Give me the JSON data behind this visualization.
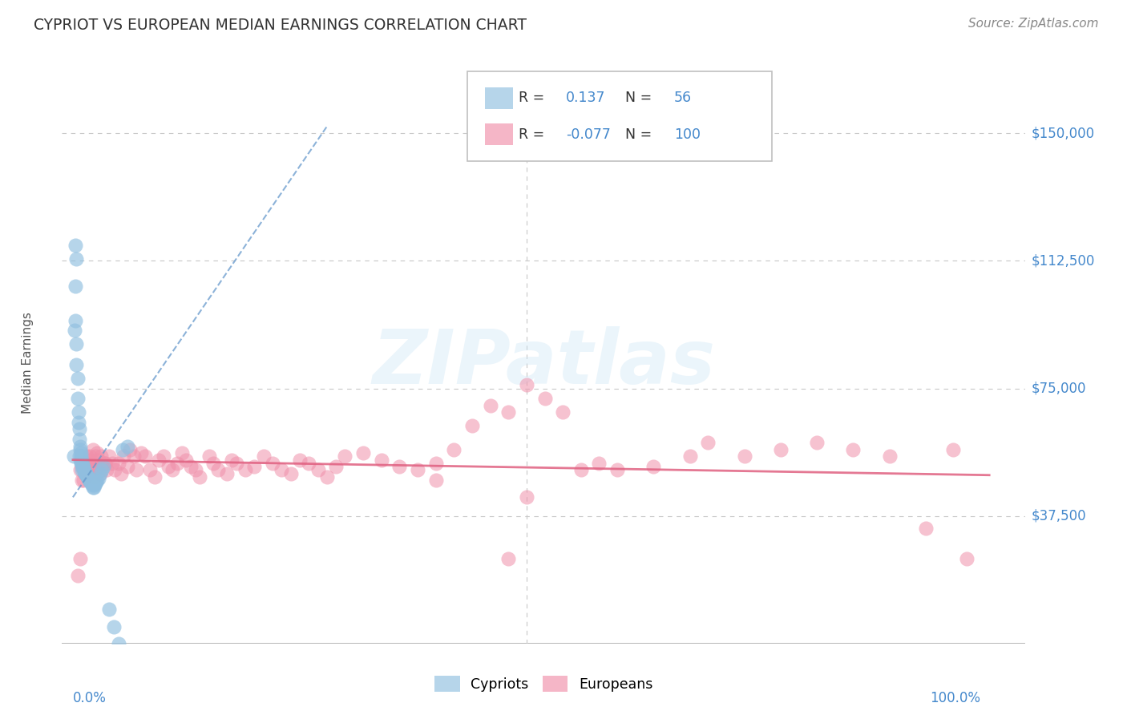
{
  "title": "CYPRIOT VS EUROPEAN MEDIAN EARNINGS CORRELATION CHART",
  "source": "Source: ZipAtlas.com",
  "ylabel": "Median Earnings",
  "cypriot_R": 0.137,
  "cypriot_N": 56,
  "european_R": -0.077,
  "european_N": 100,
  "ytick_labels": [
    "$37,500",
    "$75,000",
    "$112,500",
    "$150,000"
  ],
  "ytick_values": [
    37500,
    75000,
    112500,
    150000
  ],
  "ymin": 0,
  "ymax": 165000,
  "xmin": -0.012,
  "xmax": 1.05,
  "background_color": "#ffffff",
  "grid_color": "#c8c8c8",
  "cypriot_color": "#90bfe0",
  "cypriot_line_color": "#6699cc",
  "european_color": "#f090aa",
  "european_line_color": "#e06080",
  "watermark_text": "ZIPatlas",
  "title_color": "#333333",
  "axis_label_color": "#4488cc",
  "source_color": "#888888",
  "cypriot_x": [
    0.001,
    0.002,
    0.003,
    0.003,
    0.004,
    0.004,
    0.005,
    0.005,
    0.006,
    0.006,
    0.007,
    0.007,
    0.008,
    0.008,
    0.009,
    0.009,
    0.01,
    0.01,
    0.011,
    0.011,
    0.012,
    0.012,
    0.013,
    0.013,
    0.014,
    0.015,
    0.016,
    0.017,
    0.018,
    0.019,
    0.02,
    0.021,
    0.022,
    0.023,
    0.024,
    0.025,
    0.026,
    0.027,
    0.028,
    0.03,
    0.032,
    0.034,
    0.04,
    0.045,
    0.05,
    0.055,
    0.06,
    0.007,
    0.008,
    0.009,
    0.012,
    0.01,
    0.014,
    0.016,
    0.004,
    0.003
  ],
  "cypriot_y": [
    55000,
    92000,
    105000,
    95000,
    88000,
    82000,
    78000,
    72000,
    65000,
    68000,
    63000,
    60000,
    58000,
    57000,
    56000,
    55000,
    54000,
    53000,
    52500,
    52000,
    51500,
    51000,
    50500,
    50000,
    50000,
    49500,
    49000,
    48500,
    48000,
    47500,
    47000,
    46500,
    46000,
    46000,
    46500,
    47000,
    47500,
    48000,
    48500,
    50000,
    51000,
    52000,
    10000,
    5000,
    0,
    57000,
    58000,
    55000,
    54000,
    53000,
    52000,
    51000,
    50000,
    49000,
    113000,
    117000
  ],
  "european_x": [
    0.005,
    0.008,
    0.01,
    0.012,
    0.014,
    0.015,
    0.017,
    0.018,
    0.02,
    0.022,
    0.023,
    0.025,
    0.027,
    0.03,
    0.032,
    0.035,
    0.037,
    0.04,
    0.043,
    0.046,
    0.05,
    0.053,
    0.056,
    0.06,
    0.063,
    0.067,
    0.07,
    0.075,
    0.08,
    0.085,
    0.09,
    0.095,
    0.1,
    0.105,
    0.11,
    0.115,
    0.12,
    0.125,
    0.13,
    0.135,
    0.14,
    0.15,
    0.155,
    0.16,
    0.17,
    0.175,
    0.18,
    0.19,
    0.2,
    0.21,
    0.22,
    0.23,
    0.24,
    0.25,
    0.26,
    0.27,
    0.28,
    0.29,
    0.3,
    0.32,
    0.34,
    0.36,
    0.38,
    0.4,
    0.42,
    0.44,
    0.46,
    0.48,
    0.5,
    0.52,
    0.54,
    0.56,
    0.58,
    0.6,
    0.64,
    0.68,
    0.7,
    0.74,
    0.78,
    0.82,
    0.86,
    0.9,
    0.94,
    0.97,
    0.985,
    0.01,
    0.013,
    0.016,
    0.019,
    0.021,
    0.024,
    0.027,
    0.031,
    0.035,
    0.008,
    0.017,
    0.028,
    0.5,
    0.4,
    0.48
  ],
  "european_y": [
    20000,
    25000,
    52000,
    48000,
    52000,
    55000,
    53000,
    54000,
    51000,
    57000,
    52000,
    55000,
    56000,
    50000,
    52000,
    53000,
    51000,
    55000,
    53000,
    51000,
    53000,
    50000,
    55000,
    52000,
    57000,
    55000,
    51000,
    56000,
    55000,
    51000,
    49000,
    54000,
    55000,
    52000,
    51000,
    53000,
    56000,
    54000,
    52000,
    51000,
    49000,
    55000,
    53000,
    51000,
    50000,
    54000,
    53000,
    51000,
    52000,
    55000,
    53000,
    51000,
    50000,
    54000,
    53000,
    51000,
    49000,
    52000,
    55000,
    56000,
    54000,
    52000,
    51000,
    53000,
    57000,
    64000,
    70000,
    68000,
    76000,
    72000,
    68000,
    51000,
    53000,
    51000,
    52000,
    55000,
    59000,
    55000,
    57000,
    59000,
    57000,
    55000,
    34000,
    57000,
    25000,
    48000,
    50000,
    53000,
    55000,
    51000,
    49000,
    52000,
    55000,
    53000,
    51000,
    50000,
    54000,
    43000,
    48000,
    25000
  ],
  "cy_trendline_x": [
    0.0,
    0.28
  ],
  "cy_trendline_y": [
    43000,
    152000
  ],
  "eu_trendline_x": [
    0.0,
    1.01
  ],
  "eu_trendline_y": [
    54000,
    49500
  ]
}
